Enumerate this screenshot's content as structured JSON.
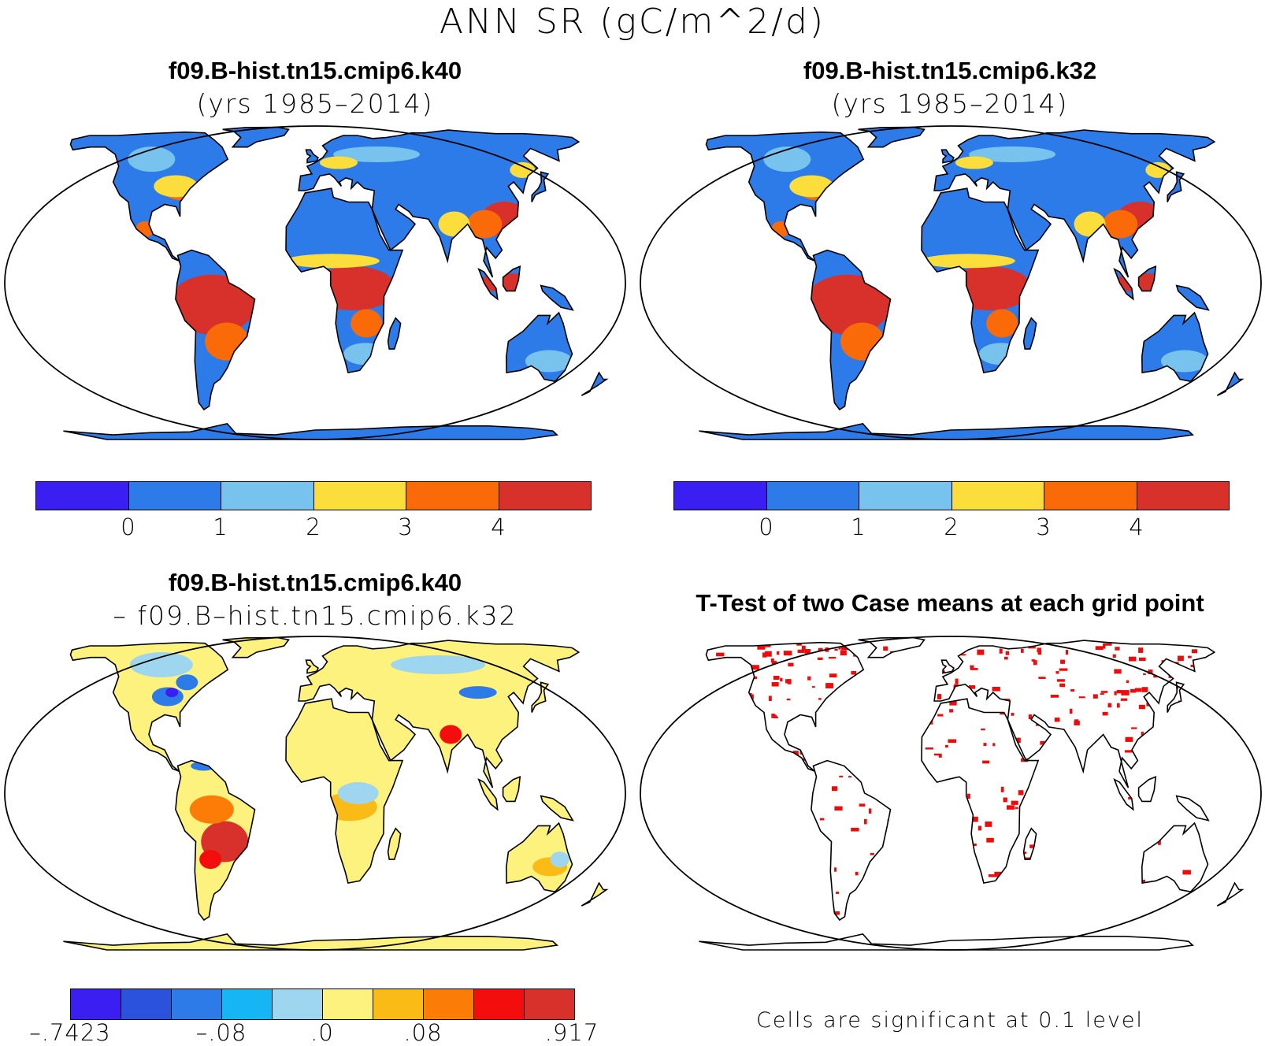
{
  "figure": {
    "title": "ANN SR (gC/m^2/d)"
  },
  "panels": [
    {
      "title": "f09.B-hist.tn15.cmip6.k40",
      "subtitle": "(yrs 1985–2014)",
      "land_color": "#2d7be8",
      "colorbar": {
        "colors": [
          "#3b1ff2",
          "#2d7be8",
          "#78c3ee",
          "#fbdd3b",
          "#fb6a08",
          "#d8302a"
        ],
        "ticks": [
          "0",
          "1",
          "2",
          "3",
          "4"
        ]
      }
    },
    {
      "title": "f09.B-hist.tn15.cmip6.k32",
      "subtitle": "(yrs 1985–2014)",
      "land_color": "#2d7be8",
      "colorbar": {
        "colors": [
          "#3b1ff2",
          "#2d7be8",
          "#78c3ee",
          "#fbdd3b",
          "#fb6a08",
          "#d8302a"
        ],
        "ticks": [
          "0",
          "1",
          "2",
          "3",
          "4"
        ]
      }
    },
    {
      "title": "f09.B-hist.tn15.cmip6.k40",
      "subtitle": "– f09.B–hist.tn15.cmip6.k32",
      "land_color": "#fdf27d",
      "colorbar": {
        "colors": [
          "#3b1ff2",
          "#2b52dc",
          "#2d7be8",
          "#16b6f5",
          "#9fd6ef",
          "#fdf27d",
          "#fbbb16",
          "#fb7d08",
          "#f30d0d",
          "#d8302a"
        ],
        "ticks": [
          "–.7423",
          "–.08",
          ".0",
          ".08",
          ".917"
        ]
      }
    },
    {
      "title": "T-Test of two Case means at each grid point",
      "land_color": "#ffffff",
      "sig_color": "#f00a0a",
      "note": "Cells are significant at 0.1 level"
    }
  ]
}
